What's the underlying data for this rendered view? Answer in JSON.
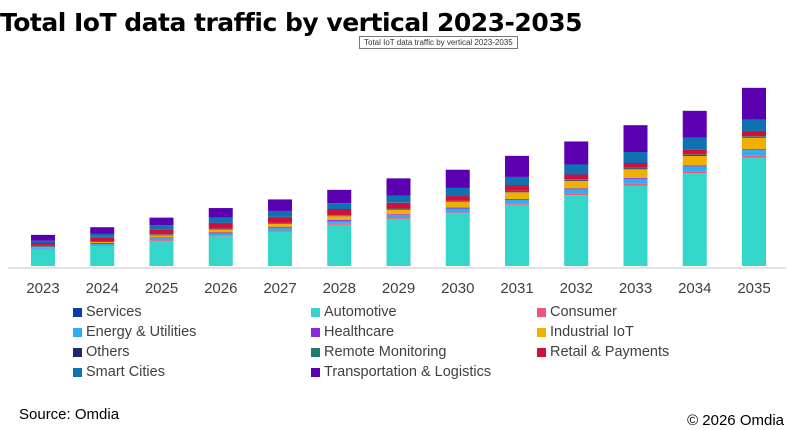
{
  "header": {
    "title": "Total IoT data traffic by vertical 2023-2035",
    "tooltip": "Total IoT data traffic by vertical 2023-2035"
  },
  "footer": {
    "source": "Source: Omdia",
    "copyright": "© 2026 Omdia"
  },
  "chart_data": {
    "type": "bar",
    "stacked": true,
    "title": "Total IoT data traffic by vertical 2023-2035",
    "xlabel": "",
    "ylabel": "",
    "y_axis_visible": false,
    "value_units": "relative (no y-axis shown)",
    "ylim": [
      0,
      190
    ],
    "grid": false,
    "legend_position": "bottom",
    "categories": [
      "2023",
      "2024",
      "2025",
      "2026",
      "2027",
      "2028",
      "2029",
      "2030",
      "2031",
      "2032",
      "2033",
      "2034",
      "2035"
    ],
    "series": [
      {
        "name": "Automotive",
        "color": "#33D6C8",
        "values": [
          17,
          21,
          26,
          31,
          36,
          43,
          49,
          55,
          64,
          74,
          84,
          97,
          113
        ]
      },
      {
        "name": "Consumer",
        "color": "#F2557A",
        "values": [
          1,
          1,
          1,
          1,
          1,
          1,
          1,
          1,
          1,
          2,
          2,
          2,
          2
        ]
      },
      {
        "name": "Energy & Utilities",
        "color": "#2EAEF0",
        "values": [
          1,
          1,
          2,
          2,
          3,
          3,
          3,
          4,
          4,
          4,
          5,
          5,
          6
        ]
      },
      {
        "name": "Healthcare",
        "color": "#8A2BE2",
        "values": [
          0.5,
          1,
          1,
          1,
          1,
          1,
          1,
          1,
          1,
          1,
          1,
          1,
          1
        ]
      },
      {
        "name": "Industrial IoT",
        "color": "#F0B000",
        "values": [
          0.5,
          1,
          2,
          3,
          3,
          4,
          5,
          6,
          7,
          8,
          9,
          10,
          12
        ]
      },
      {
        "name": "Others",
        "color": "#1A2A6C",
        "values": [
          0.5,
          0.5,
          0.5,
          0.5,
          0.5,
          0.5,
          0.5,
          0.5,
          1,
          1,
          1,
          1,
          1
        ]
      },
      {
        "name": "Remote Monitoring",
        "color": "#1E7B73",
        "values": [
          0.5,
          0.5,
          0.5,
          0.5,
          0.5,
          0.5,
          0.5,
          0.5,
          0.5,
          0.5,
          0.5,
          0.5,
          0.5
        ]
      },
      {
        "name": "Retail & Payments",
        "color": "#D0103A",
        "values": [
          3,
          4,
          5,
          6,
          6,
          6,
          6,
          5,
          5,
          5,
          5,
          5,
          5
        ]
      },
      {
        "name": "Services",
        "color": "#0A3BAA",
        "values": [
          0.5,
          0.5,
          0.5,
          0.5,
          0.5,
          0.5,
          0.5,
          0.5,
          0.5,
          0.5,
          0.5,
          0.5,
          0.5
        ]
      },
      {
        "name": "Smart Cities",
        "color": "#0E72B0",
        "values": [
          2,
          3,
          4,
          5,
          6,
          6,
          7,
          8,
          9,
          10,
          11,
          12,
          12
        ]
      },
      {
        "name": "Transportation & Logistics",
        "color": "#5A00B0",
        "values": [
          6,
          7,
          8,
          10,
          12,
          14,
          18,
          19,
          22,
          24,
          28,
          28,
          33
        ]
      }
    ],
    "legend": [
      {
        "name": "Services",
        "color": "#0A3BAA"
      },
      {
        "name": "Automotive",
        "color": "#33D6C8"
      },
      {
        "name": "Consumer",
        "color": "#F2557A"
      },
      {
        "name": "Energy & Utilities",
        "color": "#2EAEF0"
      },
      {
        "name": "Healthcare",
        "color": "#8A2BE2"
      },
      {
        "name": "Industrial IoT",
        "color": "#F0B000"
      },
      {
        "name": "Others",
        "color": "#1A2A6C"
      },
      {
        "name": "Remote Monitoring",
        "color": "#1E7B73"
      },
      {
        "name": "Retail & Payments",
        "color": "#D0103A"
      },
      {
        "name": "Smart Cities",
        "color": "#0E72B0"
      },
      {
        "name": "Transportation & Logistics",
        "color": "#5A00B0"
      }
    ]
  }
}
